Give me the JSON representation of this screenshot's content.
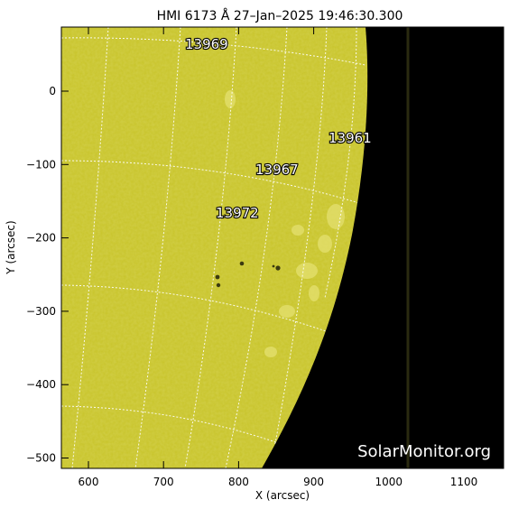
{
  "title": "HMI 6173 Å 27–Jan–2025 19:46:30.300",
  "xlabel": "X (arcsec)",
  "ylabel": "Y (arcsec)",
  "watermark": "SolarMonitor.org",
  "colors": {
    "disk": "#c8c42a",
    "space": "#000000",
    "grid": "#ffffff",
    "frame": "#000000"
  },
  "x_ticks": [
    {
      "value": 600,
      "label": "600"
    },
    {
      "value": 700,
      "label": "700"
    },
    {
      "value": 800,
      "label": "800"
    },
    {
      "value": 900,
      "label": "900"
    },
    {
      "value": 1000,
      "label": "1000"
    },
    {
      "value": 1100,
      "label": "1100"
    }
  ],
  "y_ticks": [
    {
      "value": 0,
      "label": "0"
    },
    {
      "value": -100,
      "label": "−100"
    },
    {
      "value": -200,
      "label": "−200"
    },
    {
      "value": -300,
      "label": "−300"
    },
    {
      "value": -400,
      "label": "−400"
    },
    {
      "value": -500,
      "label": "−500"
    }
  ],
  "regions": [
    {
      "id": "13969",
      "label": "13969"
    },
    {
      "id": "13961",
      "label": "13961"
    },
    {
      "id": "13967",
      "label": "13967"
    },
    {
      "id": "13972",
      "label": "13972"
    }
  ]
}
